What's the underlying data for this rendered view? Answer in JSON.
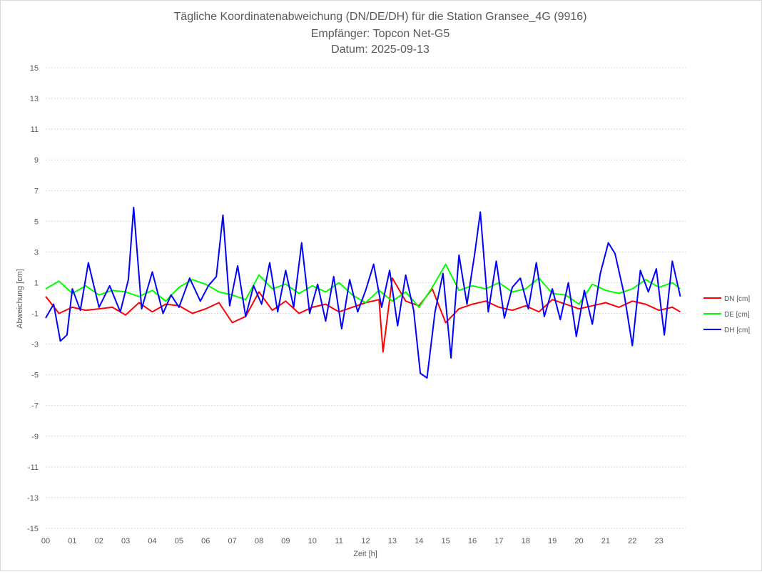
{
  "chart_data": {
    "type": "line",
    "title_lines": [
      "Tägliche Koordinatenabweichung (DN/DE/DH) für die Station Gransee_4G (9916)",
      "Empfänger: Topcon Net-G5",
      "Datum: 2025-09-13"
    ],
    "xlabel": "Zeit [h]",
    "ylabel": "Abweichung [cm]",
    "ylim": [
      -15,
      15
    ],
    "yticks": [
      "15",
      "13",
      "11",
      "9",
      "7",
      "5",
      "3",
      "1",
      "-1",
      "-3",
      "-5",
      "-7",
      "-9",
      "-11",
      "-13",
      "-15"
    ],
    "xlim": [
      0,
      24
    ],
    "xticks": [
      "00",
      "01",
      "02",
      "03",
      "04",
      "05",
      "06",
      "07",
      "08",
      "09",
      "10",
      "11",
      "12",
      "13",
      "14",
      "15",
      "16",
      "17",
      "18",
      "19",
      "20",
      "21",
      "22",
      "23"
    ],
    "grid": true,
    "legend_position": "right",
    "series": [
      {
        "name": "DN [cm]",
        "color": "#ff0000",
        "x": [
          0,
          0.5,
          1,
          1.5,
          2,
          2.5,
          3,
          3.5,
          4,
          4.5,
          5,
          5.5,
          6,
          6.5,
          7,
          7.5,
          8,
          8.5,
          9,
          9.5,
          10,
          10.5,
          11,
          11.5,
          12,
          12.5,
          12.65,
          13,
          13.5,
          14,
          14.5,
          15,
          15.5,
          16,
          16.5,
          17,
          17.5,
          18,
          18.5,
          19,
          19.5,
          20,
          20.5,
          21,
          21.5,
          22,
          22.5,
          23,
          23.5,
          23.8
        ],
        "y": [
          0.1,
          -1.0,
          -0.6,
          -0.8,
          -0.7,
          -0.6,
          -1.1,
          -0.3,
          -0.9,
          -0.4,
          -0.5,
          -1.0,
          -0.7,
          -0.3,
          -1.6,
          -1.2,
          0.4,
          -0.8,
          -0.2,
          -1.0,
          -0.6,
          -0.4,
          -0.9,
          -0.6,
          -0.3,
          -0.1,
          -3.5,
          1.3,
          -0.2,
          -0.5,
          0.6,
          -1.6,
          -0.7,
          -0.4,
          -0.2,
          -0.6,
          -0.8,
          -0.5,
          -0.9,
          -0.1,
          -0.4,
          -0.7,
          -0.5,
          -0.3,
          -0.6,
          -0.2,
          -0.4,
          -0.8,
          -0.6,
          -0.9
        ]
      },
      {
        "name": "DE [cm]",
        "color": "#00ff00",
        "x": [
          0,
          0.5,
          1,
          1.5,
          2,
          2.5,
          3,
          3.5,
          4,
          4.5,
          5,
          5.5,
          6,
          6.5,
          7,
          7.5,
          8,
          8.5,
          9,
          9.5,
          10,
          10.5,
          11,
          11.5,
          12,
          12.5,
          13,
          13.5,
          14,
          14.5,
          15,
          15.5,
          16,
          16.5,
          17,
          17.5,
          18,
          18.5,
          19,
          19.5,
          20,
          20.5,
          21,
          21.5,
          22,
          22.5,
          23,
          23.5,
          23.8
        ],
        "y": [
          0.6,
          1.1,
          0.3,
          0.8,
          0.2,
          0.5,
          0.4,
          0.1,
          0.5,
          -0.2,
          0.7,
          1.2,
          0.9,
          0.4,
          0.2,
          -0.1,
          1.5,
          0.6,
          0.9,
          0.3,
          0.8,
          0.4,
          1.0,
          0.2,
          -0.3,
          0.5,
          -0.2,
          0.4,
          -0.6,
          0.7,
          2.2,
          0.5,
          0.8,
          0.6,
          1.0,
          0.4,
          0.6,
          1.3,
          0.3,
          0.2,
          -0.4,
          0.9,
          0.5,
          0.3,
          0.6,
          1.2,
          0.7,
          1.0,
          0.6
        ]
      },
      {
        "name": "DH [cm]",
        "color": "#0000ff",
        "x": [
          0,
          0.3,
          0.55,
          0.8,
          1,
          1.3,
          1.6,
          2,
          2.4,
          2.8,
          3.1,
          3.3,
          3.6,
          4,
          4.4,
          4.7,
          5,
          5.4,
          5.8,
          6.1,
          6.4,
          6.65,
          6.9,
          7.2,
          7.5,
          7.8,
          8.1,
          8.4,
          8.7,
          9,
          9.3,
          9.6,
          9.9,
          10.2,
          10.5,
          10.8,
          11.1,
          11.4,
          11.7,
          12,
          12.3,
          12.6,
          12.9,
          13.2,
          13.5,
          13.8,
          14.05,
          14.3,
          14.6,
          14.9,
          15.2,
          15.5,
          15.8,
          16.1,
          16.3,
          16.6,
          16.9,
          17.2,
          17.5,
          17.8,
          18.1,
          18.4,
          18.7,
          19,
          19.3,
          19.6,
          19.9,
          20.2,
          20.5,
          20.8,
          21.1,
          21.35,
          21.7,
          22,
          22.3,
          22.6,
          22.9,
          23.2,
          23.5,
          23.8
        ],
        "y": [
          -1.3,
          -0.4,
          -2.8,
          -2.4,
          0.6,
          -0.8,
          2.3,
          -0.6,
          0.8,
          -0.9,
          1.2,
          5.9,
          -0.7,
          1.7,
          -1.0,
          0.2,
          -0.6,
          1.3,
          -0.2,
          0.8,
          1.4,
          5.4,
          -0.5,
          2.1,
          -1.2,
          0.8,
          -0.4,
          2.3,
          -0.9,
          1.8,
          -0.6,
          3.6,
          -1.0,
          0.9,
          -1.5,
          1.4,
          -2.0,
          1.2,
          -0.9,
          0.5,
          2.2,
          -0.6,
          1.8,
          -1.8,
          1.5,
          -0.8,
          -4.9,
          -5.2,
          -0.9,
          1.6,
          -3.9,
          2.8,
          -0.4,
          3.0,
          5.6,
          -0.9,
          2.4,
          -1.3,
          0.7,
          1.3,
          -0.7,
          2.3,
          -1.2,
          0.6,
          -1.4,
          1.0,
          -2.5,
          0.5,
          -1.7,
          1.6,
          3.6,
          2.9,
          0.2,
          -3.1,
          1.8,
          0.4,
          1.9,
          -2.4,
          2.4,
          0.1
        ]
      }
    ]
  }
}
